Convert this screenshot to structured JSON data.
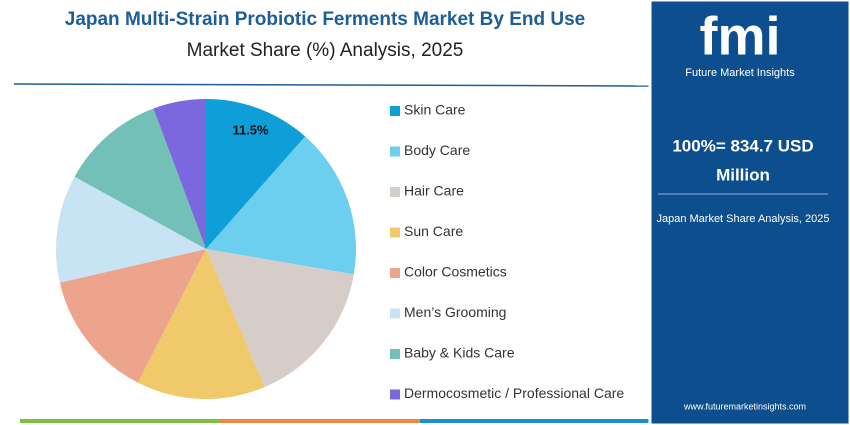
{
  "chart_data": {
    "type": "pie",
    "title": "Japan Multi-Strain Probiotic Ferments Market By End Use",
    "subtitle": "Market Share (%) Analysis, 2025",
    "categories": [
      "Skin Care",
      "Body Care",
      "Hair Care",
      "Sun Care",
      "Color Cosmetics",
      "Men’s Grooming",
      "Baby & Kids Care",
      "Dermocosmetic / Professional Care"
    ],
    "values": [
      11.5,
      16.2,
      15.9,
      13.9,
      13.9,
      11.6,
      11.3,
      5.7
    ],
    "value_labels": [
      "11.5%",
      null,
      null,
      null,
      null,
      null,
      null,
      null
    ],
    "colors": [
      "#0e9fd8",
      "#6dcff0",
      "#d6ccc8",
      "#efc96a",
      "#eca48c",
      "#c8e3f3",
      "#72c0b8",
      "#7b68de"
    ],
    "legend": "right"
  },
  "panel": {
    "logo": "fmi",
    "brand": "Future Market Insights",
    "total": "100%= 834.7 USD",
    "total_unit": "Million",
    "caption": "Japan Market Share Analysis, 2025",
    "website": "www.futuremarketinsights.com"
  }
}
